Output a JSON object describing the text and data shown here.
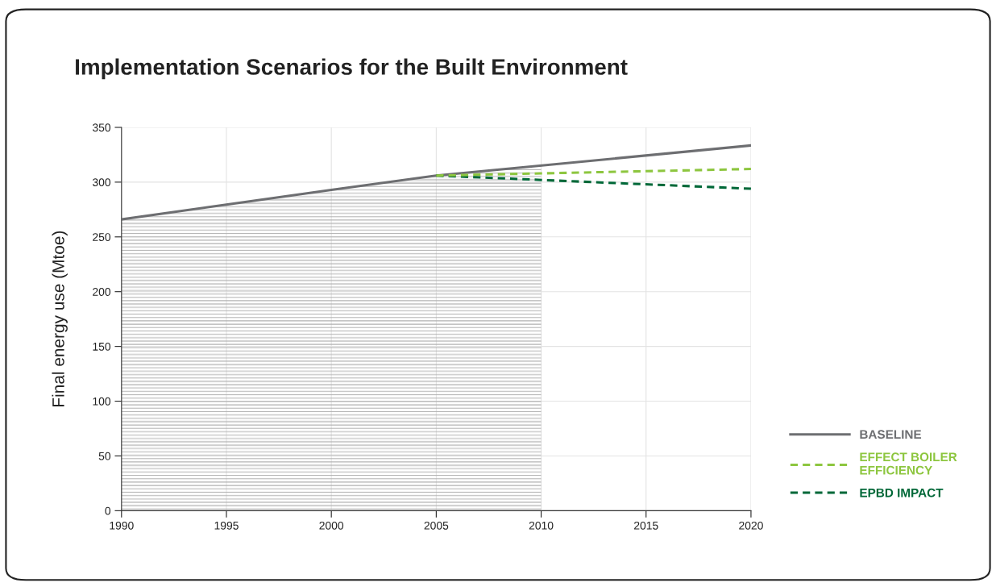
{
  "chart_data": {
    "type": "line",
    "title": "Implementation Scenarios for the Built Environment",
    "ylabel": "Final energy use (Mtoe)",
    "xlim": [
      1990,
      2020
    ],
    "xticks": [
      1990,
      1995,
      2000,
      2005,
      2010,
      2015,
      2020
    ],
    "ylim": [
      0,
      350
    ],
    "yticks": [
      0,
      50,
      100,
      150,
      200,
      250,
      300,
      350
    ],
    "grid": true,
    "legend": "bottom right",
    "bands": [
      {
        "axis": "x",
        "from": 1990,
        "to": 2010,
        "color": "#b0b0b0"
      }
    ],
    "series": [
      {
        "name": "BASELINE",
        "color": "#6d6e71",
        "x": [
          1990,
          1995,
          2000,
          2005,
          2020
        ],
        "values": [
          266,
          279.5,
          293,
          306,
          333.5
        ],
        "line_style": "solid"
      },
      {
        "name": "EFFECT BOILER EFFICIENCY",
        "color": "#8dc63f",
        "x": [
          2005,
          2010,
          2020
        ],
        "values": [
          306,
          308,
          312
        ],
        "line_style": "dashed"
      },
      {
        "name": "EPBD IMPACT",
        "color": "#006838",
        "x": [
          2005,
          2010,
          2020
        ],
        "values": [
          306,
          302,
          294
        ],
        "line_style": "dashed"
      }
    ]
  }
}
